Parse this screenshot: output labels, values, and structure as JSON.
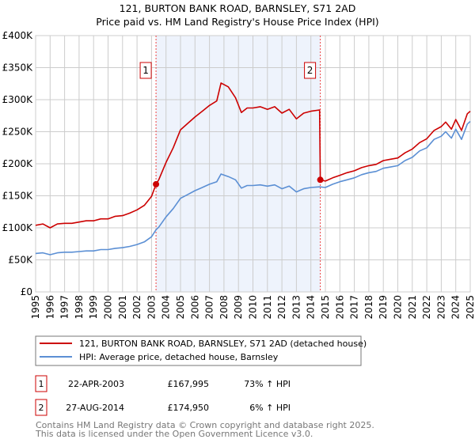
{
  "title": "121, BURTON BANK ROAD, BARNSLEY, S71 2AD",
  "subtitle": "Price paid vs. HM Land Registry's House Price Index (HPI)",
  "colors": {
    "property": "#cc0000",
    "hpi": "#5b8fd4",
    "shade": "#eef3fc",
    "grid": "#cccccc"
  },
  "chart_data": {
    "type": "line",
    "xlim": [
      1995,
      2025
    ],
    "ylim": [
      0,
      400000
    ],
    "x_ticks": [
      "1995",
      "1996",
      "1997",
      "1998",
      "1999",
      "2000",
      "2001",
      "2002",
      "2003",
      "2004",
      "2005",
      "2006",
      "2007",
      "2008",
      "2009",
      "2010",
      "2011",
      "2012",
      "2013",
      "2014",
      "2015",
      "2016",
      "2017",
      "2018",
      "2019",
      "2020",
      "2021",
      "2022",
      "2023",
      "2024",
      "2025"
    ],
    "y_ticks": [
      {
        "value": 0,
        "label": "£0"
      },
      {
        "value": 50000,
        "label": "£50K"
      },
      {
        "value": 100000,
        "label": "£100K"
      },
      {
        "value": 150000,
        "label": "£150K"
      },
      {
        "value": 200000,
        "label": "£200K"
      },
      {
        "value": 250000,
        "label": "£250K"
      },
      {
        "value": 300000,
        "label": "£300K"
      },
      {
        "value": 350000,
        "label": "£350K"
      },
      {
        "value": 400000,
        "label": "£400K"
      }
    ],
    "grid": true,
    "shaded_range": [
      2003.31,
      2014.65
    ],
    "series": [
      {
        "name": "121, BURTON BANK ROAD, BARNSLEY, S71 2AD (detached house)",
        "color": "#cc0000",
        "points": [
          [
            1995,
            104
          ],
          [
            1995.5,
            106
          ],
          [
            1996,
            100
          ],
          [
            1996.5,
            106
          ],
          [
            1997,
            107
          ],
          [
            1997.5,
            107
          ],
          [
            1998,
            109
          ],
          [
            1998.5,
            111
          ],
          [
            1999,
            111
          ],
          [
            1999.5,
            114
          ],
          [
            2000,
            114
          ],
          [
            2000.5,
            118
          ],
          [
            2001,
            119
          ],
          [
            2001.5,
            123
          ],
          [
            2002,
            128
          ],
          [
            2002.5,
            135
          ],
          [
            2003,
            149
          ],
          [
            2003.31,
            168
          ],
          [
            2003.5,
            175
          ],
          [
            2004,
            202
          ],
          [
            2004.5,
            225
          ],
          [
            2005,
            253
          ],
          [
            2005.5,
            263
          ],
          [
            2006,
            273
          ],
          [
            2006.5,
            282
          ],
          [
            2007,
            291
          ],
          [
            2007.5,
            298
          ],
          [
            2007.8,
            326
          ],
          [
            2008.3,
            320
          ],
          [
            2008.8,
            303
          ],
          [
            2009.2,
            280
          ],
          [
            2009.6,
            287
          ],
          [
            2010,
            287
          ],
          [
            2010.5,
            289
          ],
          [
            2011,
            285
          ],
          [
            2011.5,
            289
          ],
          [
            2012,
            279
          ],
          [
            2012.5,
            285
          ],
          [
            2013,
            270
          ],
          [
            2013.5,
            279
          ],
          [
            2014,
            282
          ],
          [
            2014.6,
            284
          ],
          [
            2014.65,
            175
          ],
          [
            2015,
            173
          ],
          [
            2015.5,
            178
          ],
          [
            2016,
            182
          ],
          [
            2016.5,
            186
          ],
          [
            2017,
            189
          ],
          [
            2017.5,
            194
          ],
          [
            2018,
            197
          ],
          [
            2018.5,
            199
          ],
          [
            2019,
            205
          ],
          [
            2019.5,
            207
          ],
          [
            2020,
            209
          ],
          [
            2020.5,
            217
          ],
          [
            2021,
            223
          ],
          [
            2021.5,
            233
          ],
          [
            2022,
            239
          ],
          [
            2022.5,
            252
          ],
          [
            2023,
            258
          ],
          [
            2023.3,
            265
          ],
          [
            2023.7,
            254
          ],
          [
            2024,
            269
          ],
          [
            2024.4,
            252
          ],
          [
            2024.8,
            278
          ],
          [
            2025,
            282
          ]
        ]
      },
      {
        "name": "HPI: Average price, detached house, Barnsley",
        "color": "#5b8fd4",
        "points": [
          [
            1995,
            60
          ],
          [
            1995.5,
            61
          ],
          [
            1996,
            58
          ],
          [
            1996.5,
            61
          ],
          [
            1997,
            62
          ],
          [
            1997.5,
            62
          ],
          [
            1998,
            63
          ],
          [
            1998.5,
            64
          ],
          [
            1999,
            64
          ],
          [
            1999.5,
            66
          ],
          [
            2000,
            66
          ],
          [
            2000.5,
            68
          ],
          [
            2001,
            69
          ],
          [
            2001.5,
            71
          ],
          [
            2002,
            74
          ],
          [
            2002.5,
            78
          ],
          [
            2003,
            86
          ],
          [
            2003.31,
            97
          ],
          [
            2003.5,
            101
          ],
          [
            2004,
            117
          ],
          [
            2004.5,
            130
          ],
          [
            2005,
            146
          ],
          [
            2005.5,
            152
          ],
          [
            2006,
            158
          ],
          [
            2006.5,
            163
          ],
          [
            2007,
            168
          ],
          [
            2007.5,
            172
          ],
          [
            2007.8,
            184
          ],
          [
            2008.3,
            180
          ],
          [
            2008.8,
            175
          ],
          [
            2009.2,
            162
          ],
          [
            2009.6,
            166
          ],
          [
            2010,
            166
          ],
          [
            2010.5,
            167
          ],
          [
            2011,
            165
          ],
          [
            2011.5,
            167
          ],
          [
            2012,
            161
          ],
          [
            2012.5,
            165
          ],
          [
            2013,
            156
          ],
          [
            2013.5,
            161
          ],
          [
            2014,
            163
          ],
          [
            2014.6,
            164
          ],
          [
            2015,
            163
          ],
          [
            2015.5,
            168
          ],
          [
            2016,
            172
          ],
          [
            2016.5,
            175
          ],
          [
            2017,
            178
          ],
          [
            2017.5,
            183
          ],
          [
            2018,
            186
          ],
          [
            2018.5,
            188
          ],
          [
            2019,
            193
          ],
          [
            2019.5,
            195
          ],
          [
            2020,
            197
          ],
          [
            2020.5,
            205
          ],
          [
            2021,
            210
          ],
          [
            2021.5,
            220
          ],
          [
            2022,
            225
          ],
          [
            2022.5,
            238
          ],
          [
            2023,
            243
          ],
          [
            2023.3,
            250
          ],
          [
            2023.7,
            240
          ],
          [
            2024,
            254
          ],
          [
            2024.4,
            238
          ],
          [
            2024.8,
            262
          ],
          [
            2025,
            266
          ]
        ]
      }
    ],
    "value_unit": "thousands GBP",
    "annotations": [
      {
        "label": "1",
        "x": 2003.31,
        "value": 167995
      },
      {
        "label": "2",
        "x": 2014.65,
        "value": 174950
      }
    ]
  },
  "transactions": [
    {
      "num": "1",
      "date": "22-APR-2003",
      "price": "£167,995",
      "hpi": "73% ↑ HPI"
    },
    {
      "num": "2",
      "date": "27-AUG-2014",
      "price": "£174,950",
      "hpi": "6% ↑ HPI"
    }
  ],
  "footer": [
    "Contains HM Land Registry data © Crown copyright and database right 2025.",
    "This data is licensed under the Open Government Licence v3.0."
  ]
}
